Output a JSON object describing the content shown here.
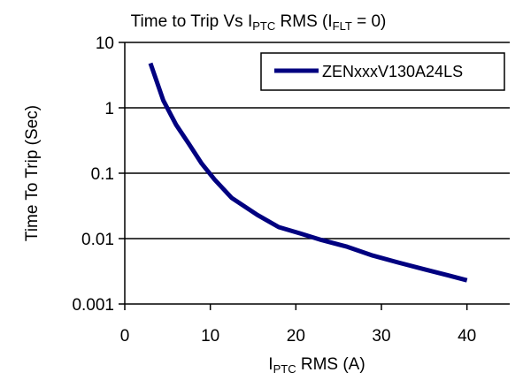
{
  "colors": {
    "series": "#000080",
    "grid": "#000000",
    "axis": "#000000",
    "background": "#ffffff"
  },
  "chart_data": {
    "type": "line",
    "title": {
      "pre": "Time to Trip Vs I",
      "sub": "PTC",
      "mid": " RMS (I",
      "sub2": "FLT",
      "post": " = 0)"
    },
    "xlabel": {
      "pre": "I",
      "sub": "PTC",
      "post": " RMS (A)"
    },
    "ylabel": "Time To Trip (Sec)",
    "xlim": [
      0,
      45
    ],
    "ylim": [
      0.001,
      10
    ],
    "yscale": "log",
    "x_ticks": [
      "0",
      "10",
      "20",
      "30",
      "40"
    ],
    "y_ticks": [
      "10",
      "1",
      "0.1",
      "0.01",
      "0.001"
    ],
    "grid": "horizontal major lines",
    "legend_position": "top-right",
    "series": [
      {
        "name": "ZENxxxV130A24LS",
        "x": [
          3,
          4.5,
          6,
          7.5,
          9,
          10.5,
          12.5,
          15.5,
          18,
          20.5,
          23,
          26,
          29,
          32,
          35,
          38,
          40
        ],
        "y": [
          4.8,
          1.3,
          0.55,
          0.28,
          0.14,
          0.08,
          0.042,
          0.023,
          0.015,
          0.012,
          0.0095,
          0.0075,
          0.0055,
          0.0043,
          0.0034,
          0.0027,
          0.0023
        ]
      }
    ]
  }
}
